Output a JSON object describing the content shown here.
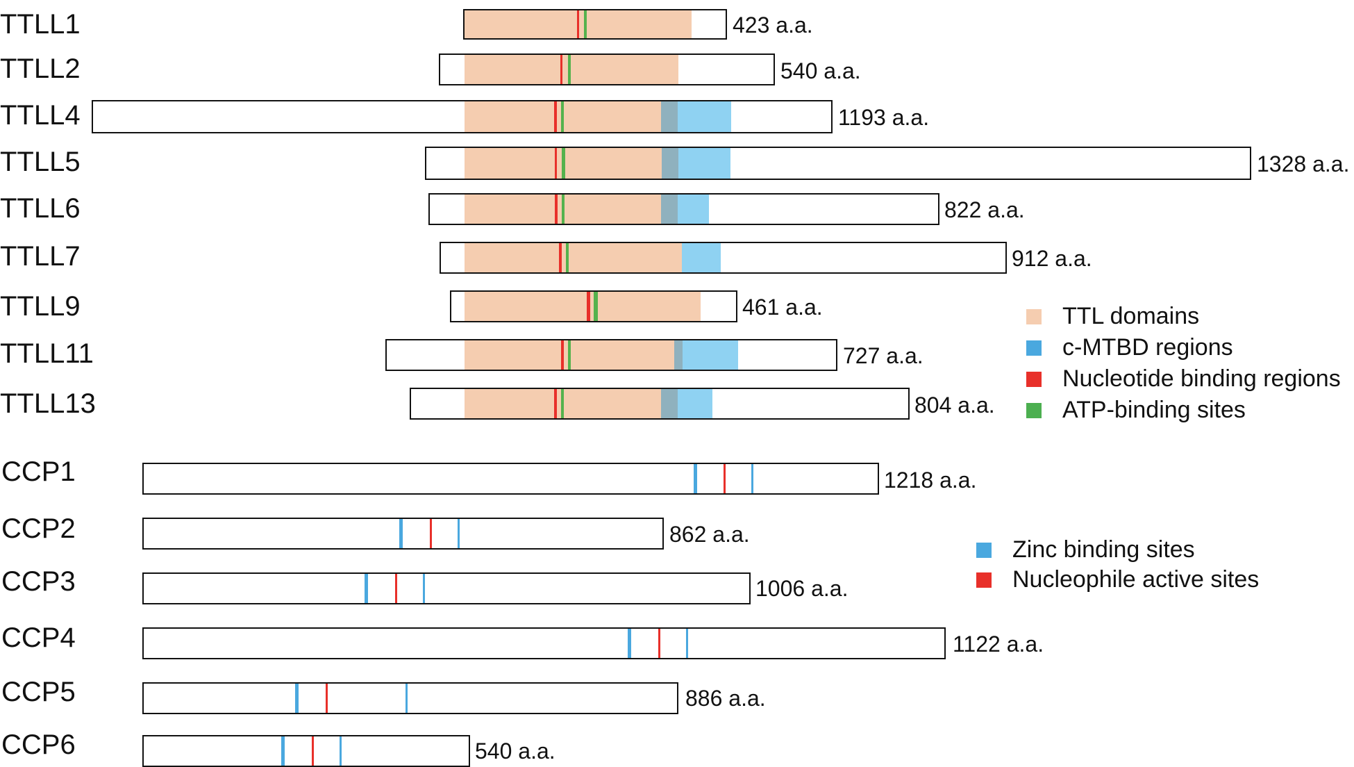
{
  "colors": {
    "ttl": "#f5cdb0",
    "mtbd": "#8fd2f2",
    "overlap": "#8fb1be",
    "nucleotide": "#e8302a",
    "atp": "#55b24d",
    "zinc": "#4aa8df",
    "nucleophile": "#e8302a",
    "legend_mtbd": "#4aa8df",
    "legend_nuc": "#e8302a",
    "legend_atp": "#4caf50"
  },
  "ttll_proteins": [
    {
      "name": "TTLL1",
      "length_label": "423 a.a."
    },
    {
      "name": "TTLL2",
      "length_label": "540 a.a."
    },
    {
      "name": "TTLL4",
      "length_label": "1193 a.a."
    },
    {
      "name": "TTLL5",
      "length_label": "1328 a.a."
    },
    {
      "name": "TTLL6",
      "length_label": "822 a.a."
    },
    {
      "name": "TTLL7",
      "length_label": "912 a.a."
    },
    {
      "name": "TTLL9",
      "length_label": "461 a.a."
    },
    {
      "name": "TTLL11",
      "length_label": "727 a.a."
    },
    {
      "name": "TTLL13",
      "length_label": "804 a.a."
    }
  ],
  "ccp_proteins": [
    {
      "name": "CCP1",
      "length_label": "1218 a.a."
    },
    {
      "name": "CCP2",
      "length_label": "862 a.a."
    },
    {
      "name": "CCP3",
      "length_label": "1006 a.a."
    },
    {
      "name": "CCP4",
      "length_label": "1122 a.a."
    },
    {
      "name": "CCP5",
      "length_label": "886 a.a."
    },
    {
      "name": "CCP6",
      "length_label": "540 a.a."
    }
  ],
  "legend_ttll": {
    "ttl": "TTL domains",
    "mtbd": "c-MTBD regions",
    "nucleotide": "Nucleotide binding regions",
    "atp": "ATP-binding sites"
  },
  "legend_ccp": {
    "zinc": "Zinc binding sites",
    "nucleophile": "Nucleophile active sites"
  }
}
